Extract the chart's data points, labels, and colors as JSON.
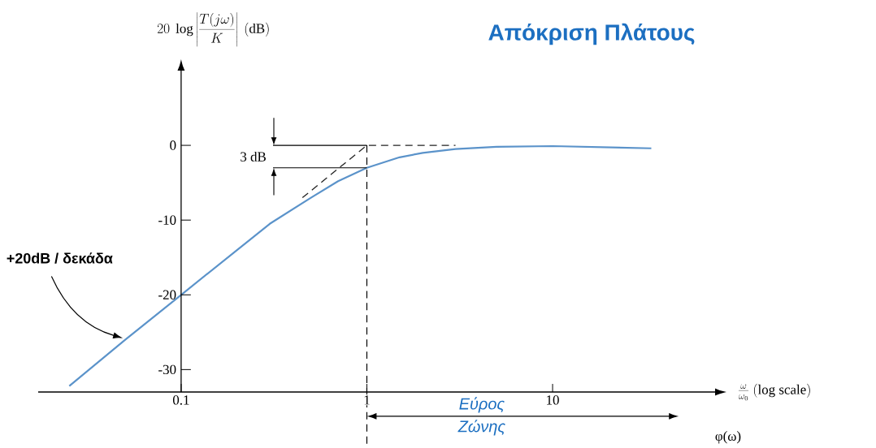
{
  "chart_data": {
    "type": "line",
    "title": "Απόκριση Πλάτους",
    "xlabel": "\\frac{\\omega}{\\omega_0}\\ \\mathrm{(log\\ scale)}",
    "ylabel": "20\\ \\log\\left|\\frac{T(j\\omega)}{K}\\right|\\ (\\mathrm{dB})",
    "log": "x",
    "xlim": [
      0.017,
      75
    ],
    "ylim": [
      -33,
      10
    ],
    "xticks": [
      0.1,
      1,
      10
    ],
    "yticks": [
      -30,
      -20,
      -10,
      0
    ],
    "series": [
      {
        "color": "#5b93ca",
        "x": [
          0.025,
          0.05,
          0.1,
          0.2,
          0.3,
          0.5,
          0.7,
          1,
          1.5,
          2,
          3,
          5,
          10,
          34
        ],
        "values": [
          -32.2,
          -26,
          -20,
          -14,
          -10.5,
          -7,
          -4.8,
          -3,
          -1.6,
          -1,
          -0.5,
          -0.2,
          -0.1,
          -0.4
        ]
      },
      {
        "color": "#222222",
        "line_style": "dashed",
        "x": [
          0.45,
          1,
          3
        ],
        "values": [
          -7,
          0,
          0
        ]
      }
    ],
    "ref_lines": [
      {
        "axis": "x",
        "value": 1,
        "line_style": "dashed"
      }
    ],
    "annotations": [
      "+20dB / δεκάδα",
      {
        "text": "3 dB",
        "x": 1,
        "y": -3
      },
      "Εύρος Ζώνης",
      "φ(ω)"
    ]
  }
}
